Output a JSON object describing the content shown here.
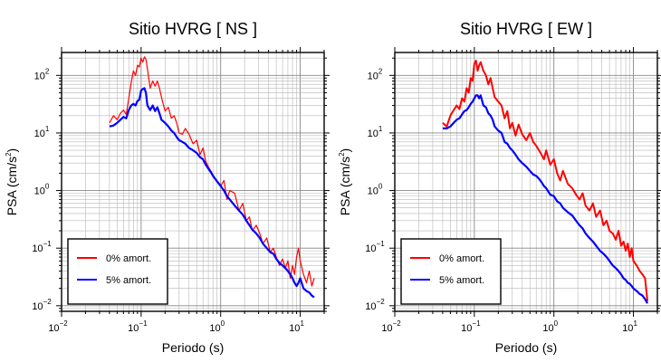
{
  "chart_data": [
    {
      "type": "line",
      "title": "Sitio HVRG [ NS ]",
      "xlabel": "Periodo (s)",
      "ylabel": "PSA (cm/s²)",
      "xscale": "log",
      "yscale": "log",
      "xlim": [
        0.01,
        20
      ],
      "ylim": [
        0.008,
        250
      ],
      "xticks": [
        {
          "base": "10",
          "exp": "−2"
        },
        {
          "base": "10",
          "exp": "−1"
        },
        {
          "base": "10",
          "exp": "0"
        },
        {
          "base": "10",
          "exp": "1"
        }
      ],
      "yticks": [
        {
          "base": "10",
          "exp": "−2"
        },
        {
          "base": "10",
          "exp": "−1"
        },
        {
          "base": "10",
          "exp": "0"
        },
        {
          "base": "10",
          "exp": "1"
        },
        {
          "base": "10",
          "exp": "2"
        }
      ],
      "grid": true,
      "legend_position": "bottom-left",
      "series": [
        {
          "name": "0% amort.",
          "color": "#ff0000",
          "x": [
            0.04,
            0.045,
            0.05,
            0.055,
            0.06,
            0.065,
            0.07,
            0.075,
            0.08,
            0.085,
            0.09,
            0.095,
            0.1,
            0.105,
            0.11,
            0.115,
            0.12,
            0.13,
            0.14,
            0.15,
            0.16,
            0.17,
            0.18,
            0.2,
            0.22,
            0.24,
            0.26,
            0.28,
            0.3,
            0.33,
            0.36,
            0.4,
            0.45,
            0.5,
            0.55,
            0.6,
            0.65,
            0.7,
            0.75,
            0.8,
            0.9,
            1.0,
            1.1,
            1.2,
            1.3,
            1.5,
            1.7,
            1.9,
            2.1,
            2.3,
            2.5,
            2.8,
            3.1,
            3.4,
            3.8,
            4.2,
            4.6,
            5.0,
            5.5,
            6.0,
            6.5,
            7.0,
            7.5,
            8.0,
            8.5,
            9.0,
            9.5,
            10.0,
            11.0,
            12.0,
            13.0,
            14.0,
            15.0
          ],
          "y": [
            15,
            20,
            17,
            22,
            25,
            21,
            40,
            75,
            120,
            100,
            150,
            140,
            200,
            170,
            210,
            190,
            130,
            60,
            80,
            65,
            80,
            60,
            42,
            24,
            28,
            18,
            20,
            15,
            10,
            9.5,
            12,
            9.5,
            6.5,
            7.5,
            4.2,
            5.5,
            3.2,
            2.6,
            2.2,
            1.9,
            1.4,
            1.2,
            1.5,
            0.7,
            1.0,
            0.9,
            0.45,
            0.6,
            0.3,
            0.35,
            0.2,
            0.25,
            0.18,
            0.12,
            0.15,
            0.085,
            0.1,
            0.07,
            0.05,
            0.065,
            0.045,
            0.06,
            0.03,
            0.05,
            0.035,
            0.07,
            0.1,
            0.06,
            0.035,
            0.025,
            0.04,
            0.022,
            0.03
          ]
        },
        {
          "name": "5% amort.",
          "color": "#0000ff",
          "x": [
            0.04,
            0.045,
            0.05,
            0.055,
            0.06,
            0.065,
            0.07,
            0.075,
            0.08,
            0.085,
            0.09,
            0.095,
            0.1,
            0.105,
            0.11,
            0.115,
            0.12,
            0.13,
            0.14,
            0.15,
            0.16,
            0.17,
            0.18,
            0.2,
            0.22,
            0.24,
            0.26,
            0.28,
            0.3,
            0.33,
            0.36,
            0.4,
            0.45,
            0.5,
            0.55,
            0.6,
            0.65,
            0.7,
            0.75,
            0.8,
            0.9,
            1.0,
            1.1,
            1.2,
            1.3,
            1.5,
            1.7,
            1.9,
            2.1,
            2.3,
            2.5,
            2.8,
            3.1,
            3.4,
            3.8,
            4.2,
            4.6,
            5.0,
            5.5,
            6.0,
            6.5,
            7.0,
            7.5,
            8.0,
            8.5,
            9.0,
            9.5,
            10.0,
            11.0,
            12.0,
            13.0,
            14.0,
            15.0
          ],
          "y": [
            13,
            13.5,
            15,
            17,
            19,
            18,
            25,
            30,
            32,
            30,
            36,
            38,
            55,
            58,
            60,
            50,
            30,
            25,
            30,
            24,
            28,
            22,
            17,
            15,
            13,
            11,
            10,
            8.5,
            7.5,
            7,
            6.5,
            5.5,
            5,
            4.5,
            3.8,
            3.5,
            2.8,
            2.4,
            2.1,
            1.8,
            1.45,
            1.2,
            1.0,
            0.8,
            0.7,
            0.55,
            0.45,
            0.38,
            0.3,
            0.25,
            0.21,
            0.18,
            0.15,
            0.12,
            0.1,
            0.085,
            0.08,
            0.065,
            0.055,
            0.05,
            0.045,
            0.04,
            0.035,
            0.03,
            0.025,
            0.022,
            0.025,
            0.03,
            0.02,
            0.018,
            0.017,
            0.015,
            0.014
          ]
        }
      ]
    },
    {
      "type": "line",
      "title": "Sitio HVRG [ EW ]",
      "xlabel": "Periodo (s)",
      "ylabel": "PSA (cm/s²)",
      "xscale": "log",
      "yscale": "log",
      "xlim": [
        0.01,
        20
      ],
      "ylim": [
        0.008,
        250
      ],
      "xticks": [
        {
          "base": "10",
          "exp": "−2"
        },
        {
          "base": "10",
          "exp": "−1"
        },
        {
          "base": "10",
          "exp": "0"
        },
        {
          "base": "10",
          "exp": "1"
        }
      ],
      "yticks": [
        {
          "base": "10",
          "exp": "−2"
        },
        {
          "base": "10",
          "exp": "−1"
        },
        {
          "base": "10",
          "exp": "0"
        },
        {
          "base": "10",
          "exp": "1"
        },
        {
          "base": "10",
          "exp": "2"
        }
      ],
      "grid": true,
      "legend_position": "bottom-left",
      "series": [
        {
          "name": "0% amort.",
          "color": "#ff0000",
          "x": [
            0.04,
            0.045,
            0.05,
            0.055,
            0.06,
            0.065,
            0.07,
            0.075,
            0.08,
            0.085,
            0.09,
            0.095,
            0.1,
            0.105,
            0.11,
            0.115,
            0.12,
            0.13,
            0.14,
            0.15,
            0.16,
            0.17,
            0.18,
            0.2,
            0.22,
            0.24,
            0.26,
            0.28,
            0.3,
            0.33,
            0.36,
            0.4,
            0.45,
            0.5,
            0.55,
            0.6,
            0.65,
            0.7,
            0.75,
            0.8,
            0.9,
            1.0,
            1.1,
            1.2,
            1.3,
            1.5,
            1.7,
            1.9,
            2.1,
            2.3,
            2.5,
            2.8,
            3.1,
            3.4,
            3.8,
            4.2,
            4.6,
            5.0,
            5.5,
            6.0,
            6.5,
            7.0,
            7.5,
            8.0,
            8.5,
            9.0,
            9.5,
            10.0,
            11.0,
            12.0,
            13.0,
            14.0,
            15.0
          ],
          "y": [
            15,
            13,
            20,
            25,
            30,
            26,
            40,
            35,
            60,
            50,
            90,
            80,
            160,
            180,
            120,
            150,
            170,
            120,
            100,
            70,
            90,
            60,
            42,
            35,
            30,
            18,
            24,
            12,
            15,
            9,
            14,
            9.5,
            7.5,
            10,
            7,
            6,
            5,
            4.2,
            3.5,
            5,
            2.8,
            3.5,
            2,
            1.5,
            2.2,
            1.3,
            1.1,
            0.85,
            0.7,
            0.9,
            0.55,
            0.45,
            0.6,
            0.35,
            0.45,
            0.25,
            0.3,
            0.2,
            0.18,
            0.14,
            0.2,
            0.11,
            0.13,
            0.09,
            0.12,
            0.07,
            0.1,
            0.06,
            0.05,
            0.04,
            0.035,
            0.03,
            0.012
          ]
        },
        {
          "name": "5% amort.",
          "color": "#0000ff",
          "x": [
            0.04,
            0.045,
            0.05,
            0.055,
            0.06,
            0.065,
            0.07,
            0.075,
            0.08,
            0.085,
            0.09,
            0.095,
            0.1,
            0.105,
            0.11,
            0.115,
            0.12,
            0.13,
            0.14,
            0.15,
            0.16,
            0.17,
            0.18,
            0.2,
            0.22,
            0.24,
            0.26,
            0.28,
            0.3,
            0.33,
            0.36,
            0.4,
            0.45,
            0.5,
            0.55,
            0.6,
            0.65,
            0.7,
            0.75,
            0.8,
            0.9,
            1.0,
            1.1,
            1.2,
            1.3,
            1.5,
            1.7,
            1.9,
            2.1,
            2.3,
            2.5,
            2.8,
            3.1,
            3.4,
            3.8,
            4.2,
            4.6,
            5.0,
            5.5,
            6.0,
            6.5,
            7.0,
            7.5,
            8.0,
            8.5,
            9.0,
            9.5,
            10.0,
            11.0,
            12.0,
            13.0,
            14.0,
            15.0
          ],
          "y": [
            12,
            12,
            13,
            15,
            17,
            18,
            21,
            24,
            25,
            28,
            32,
            35,
            40,
            45,
            45,
            40,
            45,
            30,
            28,
            22,
            20,
            17,
            13,
            11,
            10,
            7,
            6.5,
            5.5,
            5,
            4.2,
            3.5,
            3,
            2.6,
            2.2,
            1.9,
            1.8,
            1.6,
            1.4,
            1.2,
            1.1,
            0.85,
            0.8,
            0.65,
            0.6,
            0.5,
            0.42,
            0.37,
            0.3,
            0.25,
            0.22,
            0.18,
            0.15,
            0.13,
            0.11,
            0.09,
            0.08,
            0.07,
            0.06,
            0.05,
            0.045,
            0.04,
            0.035,
            0.03,
            0.028,
            0.025,
            0.024,
            0.022,
            0.02,
            0.018,
            0.016,
            0.015,
            0.013,
            0.011
          ]
        }
      ]
    }
  ]
}
